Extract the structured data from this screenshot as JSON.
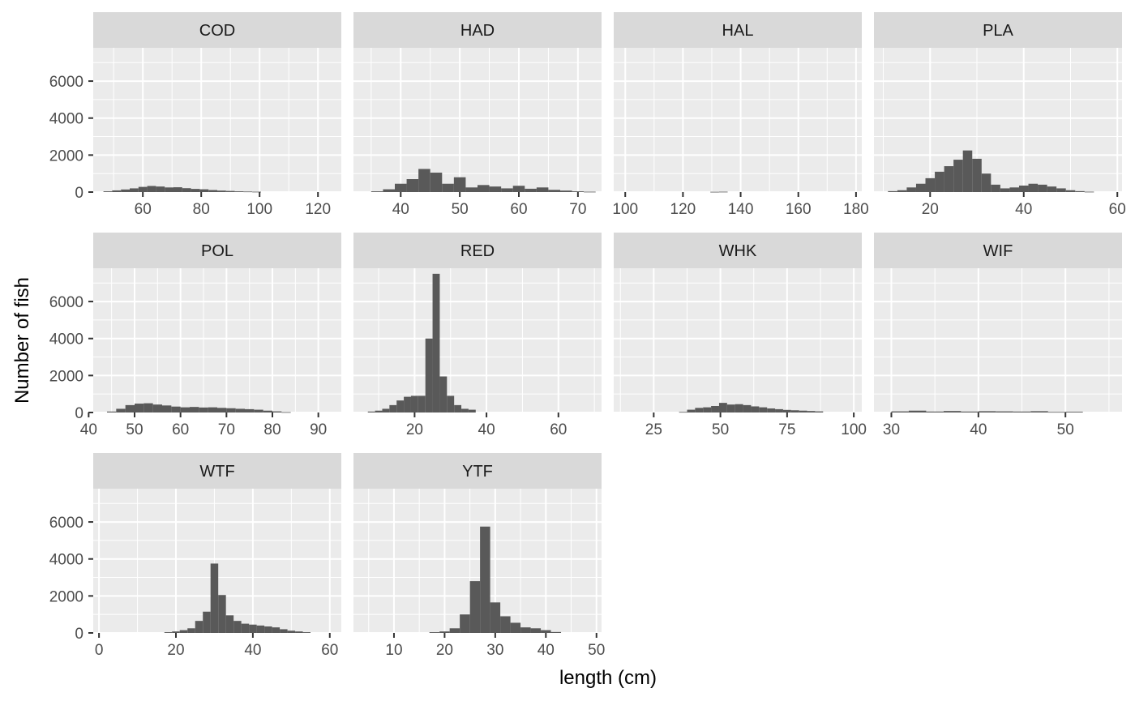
{
  "chart_data": {
    "type": "bar",
    "layout": "faceted histograms, 4 columns x 3 rows, shared y axis",
    "xlabel": "length (cm)",
    "ylabel": "Number of fish",
    "ylim": [
      0,
      7800
    ],
    "y_ticks": [
      0,
      2000,
      4000,
      6000
    ],
    "grid": true,
    "colors": {
      "panel_background": "#ebebeb",
      "strip_background": "#d9d9d9",
      "bars": "#595959",
      "grid_lines": "#ffffff"
    },
    "facets": [
      {
        "name": "COD",
        "xlim": [
          43,
          128
        ],
        "x_ticks": [
          60,
          80,
          100,
          120
        ],
        "bins": [
          [
            48,
            40
          ],
          [
            51,
            90
          ],
          [
            54,
            140
          ],
          [
            57,
            200
          ],
          [
            60,
            280
          ],
          [
            63,
            330
          ],
          [
            66,
            300
          ],
          [
            69,
            250
          ],
          [
            72,
            260
          ],
          [
            75,
            210
          ],
          [
            78,
            170
          ],
          [
            81,
            150
          ],
          [
            84,
            110
          ],
          [
            87,
            80
          ],
          [
            90,
            60
          ],
          [
            93,
            40
          ],
          [
            96,
            30
          ],
          [
            99,
            20
          ]
        ]
      },
      {
        "name": "HAD",
        "xlim": [
          32,
          74
        ],
        "x_ticks": [
          40,
          50,
          60,
          70
        ],
        "bins": [
          [
            36,
            40
          ],
          [
            38,
            150
          ],
          [
            40,
            450
          ],
          [
            42,
            700
          ],
          [
            44,
            1250
          ],
          [
            46,
            1050
          ],
          [
            48,
            450
          ],
          [
            50,
            800
          ],
          [
            52,
            250
          ],
          [
            54,
            380
          ],
          [
            56,
            300
          ],
          [
            58,
            200
          ],
          [
            60,
            340
          ],
          [
            62,
            180
          ],
          [
            64,
            250
          ],
          [
            66,
            120
          ],
          [
            68,
            80
          ],
          [
            70,
            40
          ],
          [
            72,
            20
          ]
        ]
      },
      {
        "name": "HAL",
        "xlim": [
          96,
          182
        ],
        "x_ticks": [
          100,
          120,
          140,
          160,
          180
        ],
        "bins": [
          [
            131,
            15
          ],
          [
            134,
            20
          ]
        ]
      },
      {
        "name": "PLA",
        "xlim": [
          8,
          61
        ],
        "x_ticks": [
          20,
          40,
          60
        ],
        "bins": [
          [
            12,
            50
          ],
          [
            14,
            100
          ],
          [
            16,
            250
          ],
          [
            18,
            450
          ],
          [
            20,
            750
          ],
          [
            22,
            1100
          ],
          [
            24,
            1400
          ],
          [
            26,
            1750
          ],
          [
            28,
            2250
          ],
          [
            30,
            1800
          ],
          [
            32,
            1000
          ],
          [
            34,
            400
          ],
          [
            36,
            200
          ],
          [
            38,
            250
          ],
          [
            40,
            350
          ],
          [
            42,
            450
          ],
          [
            44,
            400
          ],
          [
            46,
            300
          ],
          [
            48,
            200
          ],
          [
            50,
            100
          ],
          [
            52,
            50
          ],
          [
            54,
            20
          ]
        ]
      },
      {
        "name": "POL",
        "xlim": [
          41,
          95
        ],
        "x_ticks": [
          40,
          50,
          60,
          70,
          80,
          90
        ],
        "bins": [
          [
            45,
            50
          ],
          [
            47,
            200
          ],
          [
            49,
            400
          ],
          [
            51,
            480
          ],
          [
            53,
            500
          ],
          [
            55,
            430
          ],
          [
            57,
            380
          ],
          [
            59,
            320
          ],
          [
            61,
            280
          ],
          [
            63,
            300
          ],
          [
            65,
            270
          ],
          [
            67,
            280
          ],
          [
            69,
            250
          ],
          [
            71,
            230
          ],
          [
            73,
            200
          ],
          [
            75,
            180
          ],
          [
            77,
            150
          ],
          [
            79,
            100
          ],
          [
            81,
            60
          ],
          [
            83,
            20
          ]
        ]
      },
      {
        "name": "RED",
        "xlim": [
          3,
          72
        ],
        "x_ticks": [
          20,
          40,
          60
        ],
        "bins": [
          [
            8,
            50
          ],
          [
            10,
            100
          ],
          [
            12,
            200
          ],
          [
            14,
            400
          ],
          [
            16,
            650
          ],
          [
            18,
            850
          ],
          [
            20,
            900
          ],
          [
            22,
            900
          ],
          [
            24,
            4000
          ],
          [
            26,
            7500
          ],
          [
            28,
            1950
          ],
          [
            30,
            900
          ],
          [
            32,
            400
          ],
          [
            34,
            200
          ],
          [
            36,
            150
          ]
        ]
      },
      {
        "name": "WHK",
        "xlim": [
          10,
          103
        ],
        "x_ticks": [
          25,
          50,
          75,
          100
        ],
        "bins": [
          [
            36,
            30
          ],
          [
            39,
            150
          ],
          [
            42,
            250
          ],
          [
            45,
            280
          ],
          [
            48,
            350
          ],
          [
            51,
            520
          ],
          [
            54,
            430
          ],
          [
            57,
            450
          ],
          [
            60,
            400
          ],
          [
            63,
            330
          ],
          [
            66,
            280
          ],
          [
            69,
            220
          ],
          [
            72,
            180
          ],
          [
            75,
            140
          ],
          [
            78,
            120
          ],
          [
            81,
            100
          ],
          [
            84,
            80
          ],
          [
            87,
            60
          ]
        ]
      },
      {
        "name": "WIF",
        "xlim": [
          28,
          56.5
        ],
        "x_ticks": [
          30,
          40,
          50
        ],
        "bins": [
          [
            31,
            60
          ],
          [
            33,
            100
          ],
          [
            35,
            50
          ],
          [
            37,
            80
          ],
          [
            39,
            50
          ],
          [
            41,
            70
          ],
          [
            43,
            60
          ],
          [
            45,
            50
          ],
          [
            47,
            70
          ],
          [
            49,
            30
          ],
          [
            51,
            40
          ]
        ]
      },
      {
        "name": "WTF",
        "xlim": [
          -1.5,
          63
        ],
        "x_ticks": [
          0,
          20,
          40,
          60
        ],
        "bins": [
          [
            18,
            40
          ],
          [
            20,
            80
          ],
          [
            22,
            150
          ],
          [
            24,
            250
          ],
          [
            26,
            650
          ],
          [
            28,
            1150
          ],
          [
            30,
            3750
          ],
          [
            32,
            2050
          ],
          [
            34,
            950
          ],
          [
            36,
            650
          ],
          [
            38,
            500
          ],
          [
            40,
            450
          ],
          [
            42,
            400
          ],
          [
            44,
            350
          ],
          [
            46,
            300
          ],
          [
            48,
            200
          ],
          [
            50,
            120
          ],
          [
            52,
            80
          ],
          [
            54,
            40
          ]
        ]
      },
      {
        "name": "YTF",
        "xlim": [
          2,
          51
        ],
        "x_ticks": [
          10,
          20,
          30,
          40,
          50
        ],
        "bins": [
          [
            18,
            40
          ],
          [
            20,
            80
          ],
          [
            22,
            250
          ],
          [
            24,
            1000
          ],
          [
            26,
            2800
          ],
          [
            28,
            5750
          ],
          [
            30,
            1650
          ],
          [
            32,
            900
          ],
          [
            34,
            550
          ],
          [
            36,
            300
          ],
          [
            38,
            250
          ],
          [
            40,
            150
          ],
          [
            42,
            50
          ]
        ]
      }
    ]
  }
}
